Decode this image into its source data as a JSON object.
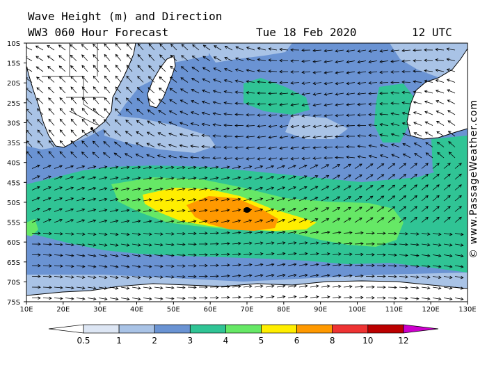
{
  "title": {
    "line1": "Wave Height (m) and Direction",
    "line2": "WW3 060 Hour Forecast",
    "date": "Tue 18 Feb 2020",
    "time": "12 UTC"
  },
  "credit": "© www.PassageWeather.com",
  "axes": {
    "lat_labels": [
      "10S",
      "15S",
      "20S",
      "25S",
      "30S",
      "35S",
      "40S",
      "45S",
      "50S",
      "55S",
      "60S",
      "65S",
      "70S",
      "75S"
    ],
    "lon_labels": [
      "10E",
      "20E",
      "30E",
      "40E",
      "50E",
      "60E",
      "70E",
      "80E",
      "90E",
      "100E",
      "110E",
      "120E",
      "130E"
    ],
    "lon_range": [
      10,
      130
    ],
    "lat_range": [
      -10,
      -75
    ]
  },
  "legend": {
    "labels": [
      "0.5",
      "1",
      "2",
      "3",
      "4",
      "5",
      "6",
      "8",
      "10",
      "12"
    ],
    "colors": [
      "#ffffff",
      "#dde6f4",
      "#a9c3e6",
      "#6a93d3",
      "#30c495",
      "#66e866",
      "#ffee00",
      "#ff9900",
      "#ee3333",
      "#bb0000",
      "#cc00cc"
    ]
  },
  "colors": {
    "land": "#ffffff",
    "border": "#000000",
    "arrow": "#000000"
  }
}
